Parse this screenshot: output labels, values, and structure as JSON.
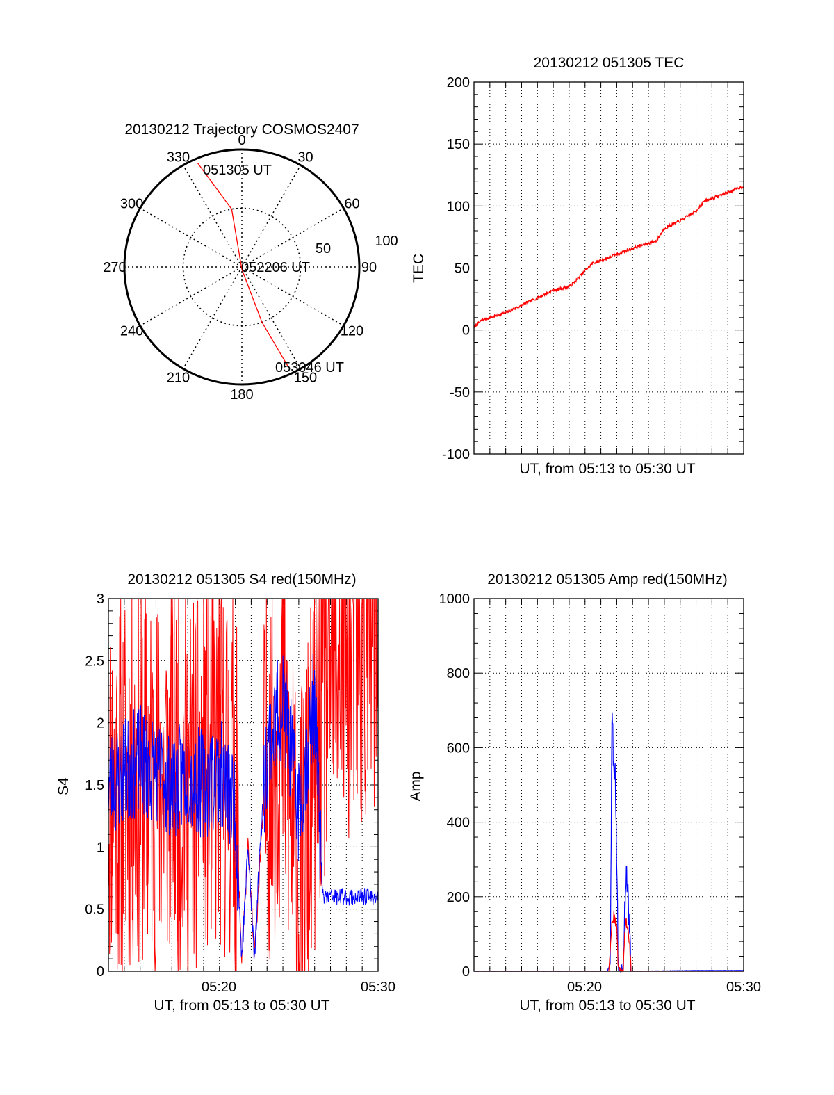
{
  "colors": {
    "red": "#ff0000",
    "blue": "#0000ff",
    "axis": "#000000",
    "grid": "#000000"
  },
  "polar": {
    "title": "20130212 Trajectory COSMOS2407",
    "az_labels": [
      "0",
      "30",
      "60",
      "90",
      "120",
      "150",
      "180",
      "210",
      "240",
      "270",
      "300",
      "330"
    ],
    "ring_labels": [
      "50",
      "100"
    ],
    "start_label": "051305 UT",
    "mid_label": "052206 UT",
    "end_label": "053046 UT"
  },
  "tec": {
    "title": "20130212 051305 TEC",
    "ylabel": "TEC",
    "xlabel": "UT, from 05:13 to 05:30 UT",
    "yticks": [
      "200",
      "150",
      "100",
      "50",
      "0",
      "-50",
      "-100"
    ]
  },
  "s4": {
    "title": "20130212 051305 S4 red(150MHz)",
    "ylabel": "S4",
    "xlabel": "UT, from 05:13 to 05:30 UT",
    "yticks": [
      "3",
      "2.5",
      "2",
      "1.5",
      "1",
      "0.5",
      "0"
    ],
    "xticks": [
      "05:20",
      "05:30"
    ]
  },
  "amp": {
    "title": "20130212 051305 Amp red(150MHz)",
    "ylabel": "Amp",
    "xlabel": "UT, from 05:13 to 05:30 UT",
    "yticks": [
      "1000",
      "800",
      "600",
      "400",
      "200",
      "0"
    ],
    "xticks": [
      "05:20",
      "05:30"
    ]
  },
  "chart_data": [
    {
      "type": "scatter",
      "projection": "polar",
      "title": "20130212 Trajectory COSMOS2407",
      "theta_direction": "clockwise, 0 at top",
      "r_ticks": [
        50,
        100
      ],
      "series": [
        {
          "color": "#ff0000",
          "points": [
            [
              337,
              96
            ],
            [
              350,
              50
            ],
            [
              180,
              2
            ],
            [
              160,
              50
            ],
            [
              155,
              95
            ]
          ]
        }
      ],
      "annotations": [
        "051305 UT",
        "052206 UT",
        "053046 UT"
      ]
    },
    {
      "type": "line",
      "title": "20130212 051305 TEC",
      "xlabel": "UT, from 05:13 to 05:30 UT",
      "ylabel": "TEC",
      "xlim": [
        0,
        17
      ],
      "ylim": [
        -100,
        200
      ],
      "grid": true,
      "series": [
        {
          "color": "#ff0000",
          "x": [
            0,
            0.5,
            1,
            2,
            3,
            4,
            5,
            6,
            6.3,
            7,
            7.5,
            8,
            9,
            10,
            11,
            11.5,
            12,
            13,
            14,
            14.5,
            15,
            16,
            17
          ],
          "y": [
            2,
            8,
            10,
            14,
            20,
            26,
            32,
            35,
            38,
            48,
            54,
            56,
            61,
            66,
            70,
            72,
            82,
            88,
            96,
            104,
            106,
            111,
            116
          ]
        }
      ]
    },
    {
      "type": "line",
      "title": "20130212 051305 S4 red(150MHz)",
      "xlabel": "UT, from 05:13 to 05:30 UT",
      "ylabel": "S4",
      "xlim": [
        0,
        17
      ],
      "ylim": [
        0,
        3
      ],
      "grid": true,
      "xtick_labels": [
        "05:20",
        "05:30"
      ],
      "series": [
        {
          "color": "#ff0000",
          "note": "noisy, mostly 0-3",
          "x": [
            0,
            1,
            2,
            3,
            4,
            5,
            6,
            7,
            8,
            8.4,
            8.8,
            9.2,
            9.6,
            10,
            11,
            12,
            13,
            14,
            15,
            16,
            17
          ],
          "y": [
            1.5,
            1.5,
            1.6,
            1.5,
            1.6,
            1.5,
            1.6,
            1.7,
            1.5,
            0.1,
            1.0,
            0.1,
            1.0,
            1.6,
            2.0,
            0.5,
            1.7,
            2.5,
            2.6,
            2.6,
            2.7
          ]
        },
        {
          "color": "#0000ff",
          "x": [
            0,
            1,
            2,
            3,
            4,
            5,
            6,
            7,
            8,
            8.4,
            8.8,
            9.2,
            9.6,
            10,
            11,
            12,
            13,
            13.5,
            14,
            15,
            16,
            17
          ],
          "y": [
            1.5,
            1.6,
            1.7,
            1.6,
            1.5,
            1.6,
            1.5,
            1.6,
            1.3,
            0.1,
            1.0,
            0.1,
            1.1,
            1.8,
            2.2,
            1.3,
            2.2,
            0.6,
            0.6,
            0.6,
            0.6,
            0.6
          ]
        }
      ]
    },
    {
      "type": "line",
      "title": "20130212 051305 Amp red(150MHz)",
      "xlabel": "UT, from 05:13 to 05:30 UT",
      "ylabel": "Amp",
      "xlim": [
        0,
        17
      ],
      "ylim": [
        0,
        1000
      ],
      "grid": true,
      "xtick_labels": [
        "05:20",
        "05:30"
      ],
      "series": [
        {
          "color": "#0000ff",
          "x": [
            0,
            8.4,
            8.6,
            8.7,
            8.8,
            8.9,
            9.0,
            9.1,
            9.2,
            9.4,
            9.5,
            9.6,
            9.7,
            9.8,
            9.9,
            10.1,
            14,
            17
          ],
          "y": [
            0,
            0,
            20,
            720,
            550,
            530,
            300,
            10,
            0,
            0,
            150,
            260,
            230,
            100,
            0,
            0,
            2,
            2
          ]
        },
        {
          "color": "#ff0000",
          "x": [
            0,
            8.5,
            8.7,
            8.8,
            8.9,
            9.0,
            9.1,
            9.2,
            9.4,
            9.5,
            9.6,
            9.7,
            9.8,
            9.9,
            17
          ],
          "y": [
            0,
            0,
            130,
            150,
            140,
            120,
            0,
            0,
            0,
            100,
            130,
            120,
            80,
            0,
            0
          ]
        }
      ]
    }
  ]
}
